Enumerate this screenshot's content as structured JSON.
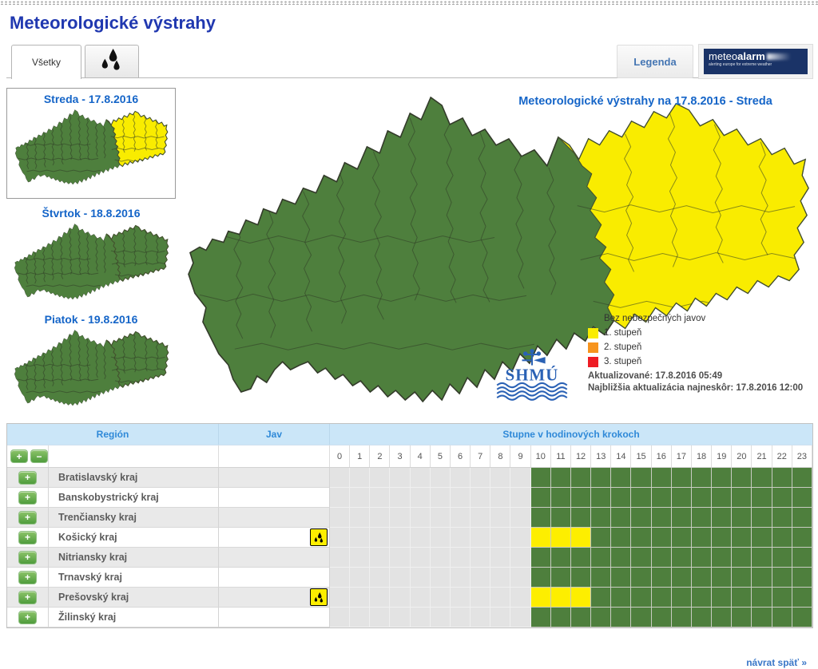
{
  "page": {
    "title": "Meteorologické výstrahy",
    "back_link": "návrat späť »"
  },
  "tabs": {
    "all_label": "Všetky",
    "rain_tab_icon": "rain-drops-icon"
  },
  "header_buttons": {
    "legend_label": "Legenda",
    "meteoalarm_meteo": "meteo",
    "meteoalarm_alarm": "alarm",
    "meteoalarm_tagline": "alerting europe for extreme weather"
  },
  "day_thumbnails": [
    {
      "label": "Streda - 17.8.2016",
      "selected": true,
      "has_east_warning": true
    },
    {
      "label": "Štvrtok - 18.8.2016",
      "selected": false,
      "has_east_warning": false
    },
    {
      "label": "Piatok - 19.8.2016",
      "selected": false,
      "has_east_warning": false
    }
  ],
  "map": {
    "title": "Meteorologické výstrahy na 17.8.2016 - Streda",
    "logo_text": "SHMÚ",
    "legend": [
      {
        "label": "Bez nebezpečných javov",
        "color": "#4e7f3d"
      },
      {
        "label": "1. stupeň",
        "color": "#f9ec00"
      },
      {
        "label": "2. stupeň",
        "color": "#f7941e"
      },
      {
        "label": "3. stupeň",
        "color": "#ee1c24"
      }
    ],
    "updated_text": "Aktualizované: 17.8.2016 05:49",
    "next_update_text": "Najbližšia aktualizácia najneskôr: 17.8.2016 12:00"
  },
  "warning_table": {
    "columns": {
      "region": "Región",
      "phenomenon": "Jav",
      "hours": "Stupne v hodinových krokoch"
    },
    "expander_plus": "+",
    "expander_minus": "−",
    "hour_labels": [
      "0",
      "1",
      "2",
      "3",
      "4",
      "5",
      "6",
      "7",
      "8",
      "9",
      "10",
      "11",
      "12",
      "13",
      "14",
      "15",
      "16",
      "17",
      "18",
      "19",
      "20",
      "21",
      "22",
      "23"
    ],
    "data_start_hour": 10,
    "colors": {
      "none": "#e3e3e3",
      "ok": "#4e7f3d",
      "level1": "#fdee00"
    },
    "rows": [
      {
        "region": "Bratislavský kraj",
        "phenomenon": null,
        "warning_level_1_hours": []
      },
      {
        "region": "Banskobystrický kraj",
        "phenomenon": null,
        "warning_level_1_hours": []
      },
      {
        "region": "Trenčiansky kraj",
        "phenomenon": null,
        "warning_level_1_hours": []
      },
      {
        "region": "Košický kraj",
        "phenomenon": "rain",
        "warning_level_1_hours": [
          10,
          11,
          12
        ]
      },
      {
        "region": "Nitriansky kraj",
        "phenomenon": null,
        "warning_level_1_hours": []
      },
      {
        "region": "Trnavský kraj",
        "phenomenon": null,
        "warning_level_1_hours": []
      },
      {
        "region": "Prešovský kraj",
        "phenomenon": "rain",
        "warning_level_1_hours": [
          10,
          11,
          12
        ]
      },
      {
        "region": "Žilinský kraj",
        "phenomenon": null,
        "warning_level_1_hours": []
      }
    ]
  }
}
